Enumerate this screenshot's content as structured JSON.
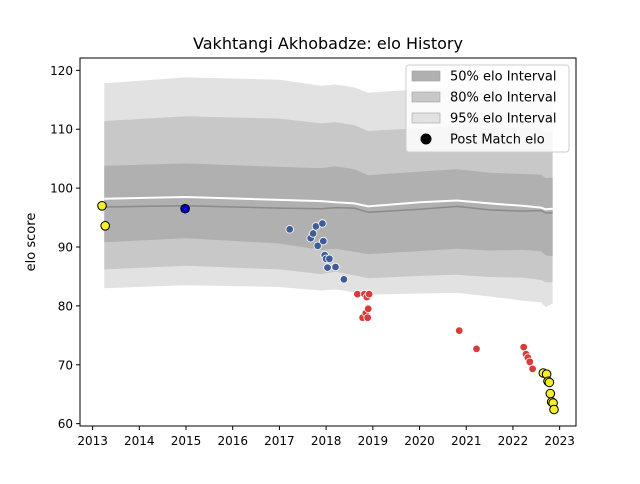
{
  "chart_data": {
    "type": "scatter",
    "title": "Vakhtangi Akhobadze: elo History",
    "xlabel": "",
    "ylabel": "elo score",
    "xlim": [
      2012.73,
      2023.35
    ],
    "ylim": [
      59.6,
      122.1
    ],
    "x_ticks": [
      2013,
      2014,
      2015,
      2016,
      2017,
      2018,
      2019,
      2020,
      2021,
      2022,
      2023
    ],
    "y_ticks": [
      60,
      70,
      80,
      90,
      100,
      110,
      120
    ],
    "grid": false,
    "legend_position": "top-right",
    "legend": [
      {
        "label": "50% elo Interval",
        "kind": "patch",
        "color": "#b0b0b0"
      },
      {
        "label": "80% elo Interval",
        "kind": "patch",
        "color": "#c8c8c8"
      },
      {
        "label": "95% elo Interval",
        "kind": "patch",
        "color": "#e2e2e2"
      },
      {
        "label": "Post Match elo",
        "kind": "marker",
        "color": "#000000"
      }
    ],
    "bands": {
      "x": [
        2013.25,
        2015.0,
        2017.0,
        2017.9,
        2018.2,
        2018.6,
        2018.9,
        2020.0,
        2020.8,
        2021.5,
        2022.2,
        2022.6,
        2022.7,
        2022.85
      ],
      "p95_hi": [
        117.8,
        118.8,
        118.4,
        117.4,
        117.6,
        117.1,
        116.2,
        116.8,
        117.1,
        116.5,
        116.4,
        116.3,
        115.6,
        115.7
      ],
      "p80_hi": [
        111.4,
        112.2,
        111.8,
        111.0,
        111.2,
        110.7,
        109.7,
        110.2,
        110.6,
        110.2,
        110.2,
        110.2,
        109.6,
        109.6
      ],
      "p50_hi": [
        103.8,
        104.2,
        103.6,
        103.4,
        103.7,
        103.2,
        102.2,
        102.8,
        103.2,
        102.6,
        102.4,
        102.3,
        101.7,
        101.8
      ],
      "median": [
        96.8,
        97.0,
        96.6,
        96.5,
        96.7,
        96.6,
        95.9,
        96.4,
        96.9,
        96.3,
        96.1,
        96.2,
        95.8,
        95.8
      ],
      "p50_lo": [
        90.8,
        91.5,
        90.6,
        89.5,
        89.7,
        89.2,
        88.8,
        89.3,
        89.7,
        89.4,
        89.5,
        89.3,
        88.6,
        88.4
      ],
      "p80_lo": [
        86.2,
        86.8,
        86.2,
        85.4,
        85.8,
        85.2,
        84.7,
        85.1,
        85.3,
        84.9,
        84.8,
        84.4,
        84.0,
        84.0
      ],
      "p95_lo": [
        83.0,
        83.5,
        83.2,
        82.6,
        82.8,
        82.3,
        81.9,
        82.1,
        82.2,
        81.6,
        80.9,
        80.6,
        79.8,
        80.4
      ],
      "white_line": [
        98.2,
        98.5,
        98.0,
        97.8,
        97.6,
        97.4,
        96.9,
        97.6,
        97.9,
        97.4,
        97.0,
        96.7,
        96.4,
        96.5
      ]
    },
    "series": [
      {
        "style": "yellow",
        "fill": "#f5ef2a",
        "stroke": "#000000",
        "x": [
          2013.2,
          2013.27
        ],
        "y": [
          97.0,
          93.6
        ]
      },
      {
        "style": "blue",
        "fill": "#0000cc",
        "stroke": "#000000",
        "x": [
          2014.98
        ],
        "y": [
          96.5
        ]
      },
      {
        "style": "darkblue",
        "fill": "#3e5c95",
        "stroke": "#ffffff",
        "x": [
          2017.22,
          2017.67,
          2017.72,
          2017.78,
          2017.82,
          2017.92,
          2017.94,
          2017.97,
          2018.0,
          2018.03,
          2018.07,
          2018.2,
          2018.38
        ],
        "y": [
          93.0,
          91.5,
          92.3,
          93.5,
          90.2,
          94.0,
          91.0,
          88.6,
          88.0,
          86.5,
          88.0,
          86.6,
          84.5
        ]
      },
      {
        "style": "red",
        "fill": "#d93b3b",
        "stroke": "#ffffff",
        "x": [
          2018.67,
          2018.78,
          2018.82,
          2018.85,
          2018.87,
          2018.89,
          2018.9,
          2018.92,
          2020.85,
          2021.22,
          2022.23,
          2022.28,
          2022.32,
          2022.36,
          2022.42
        ],
        "y": [
          82.0,
          78.0,
          82.0,
          78.8,
          81.5,
          78.0,
          79.5,
          82.0,
          75.8,
          72.7,
          73.0,
          71.8,
          71.2,
          70.5,
          69.3
        ]
      },
      {
        "style": "yellow",
        "fill": "#f5ef2a",
        "stroke": "#000000",
        "x": [
          2022.65,
          2022.72,
          2022.75,
          2022.78,
          2022.8,
          2022.83,
          2022.86,
          2022.88
        ],
        "y": [
          68.6,
          68.4,
          67.2,
          67.0,
          65.1,
          63.7,
          63.5,
          62.4
        ]
      }
    ]
  }
}
